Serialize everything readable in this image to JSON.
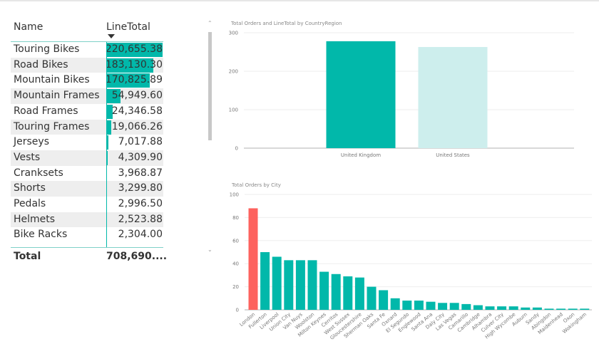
{
  "table": {
    "columns": [
      "Name",
      "LineTotal"
    ],
    "rows": [
      {
        "name": "Touring Bikes",
        "value": "220,655.38",
        "num": 220655.38
      },
      {
        "name": "Road Bikes",
        "value": "183,130.30",
        "num": 183130.3
      },
      {
        "name": "Mountain Bikes",
        "value": "170,825.89",
        "num": 170825.89
      },
      {
        "name": "Mountain Frames",
        "value": "54,949.60",
        "num": 54949.6
      },
      {
        "name": "Road Frames",
        "value": "24,346.58",
        "num": 24346.58
      },
      {
        "name": "Touring Frames",
        "value": "19,066.26",
        "num": 19066.26
      },
      {
        "name": "Jerseys",
        "value": "7,017.88",
        "num": 7017.88
      },
      {
        "name": "Vests",
        "value": "4,309.90",
        "num": 4309.9
      },
      {
        "name": "Cranksets",
        "value": "3,968.87",
        "num": 3968.87
      },
      {
        "name": "Shorts",
        "value": "3,299.80",
        "num": 3299.8
      },
      {
        "name": "Pedals",
        "value": "2,996.50",
        "num": 2996.5
      },
      {
        "name": "Helmets",
        "value": "2,523.88",
        "num": 2523.88
      },
      {
        "name": "Bike Racks",
        "value": "2,304.00",
        "num": 2304.0
      }
    ],
    "total_label": "Total",
    "total_value": "708,690....",
    "bar_color": "#01b8aa"
  },
  "chart_data": [
    {
      "type": "bar",
      "title": "Total Orders and LineTotal by CountryRegion",
      "categories": [
        "United Kingdom",
        "United States"
      ],
      "values": [
        278,
        263
      ],
      "colors": [
        "#01b8aa",
        "#cdeeed"
      ],
      "ylim": [
        0,
        300
      ],
      "yticks": [
        0,
        100,
        200,
        300
      ],
      "grid": true
    },
    {
      "type": "bar",
      "title": "Total Orders by City",
      "categories": [
        "London",
        "Fullerton",
        "Liverpool",
        "Union City",
        "Van Nuys",
        "Woolston",
        "Milton Keynes",
        "Cerritos",
        "West Sussex",
        "Gloucestershire",
        "Sherman Oaks",
        "Santa Fe",
        "Oxnard",
        "El Segundo",
        "Englewood",
        "Santa Ana",
        "Daly City",
        "Las Vegas",
        "Camarillo",
        "Cambridge",
        "Alhambra",
        "Culver City",
        "High Wycombe",
        "Auburn",
        "Sandy",
        "Abingdon",
        "Maidenhead",
        "Oxon",
        "Wokingham"
      ],
      "values": [
        88,
        50,
        46,
        43,
        43,
        43,
        33,
        31,
        29,
        28,
        20,
        17,
        10,
        8,
        8,
        7,
        6,
        6,
        5,
        4,
        3,
        3,
        3,
        2,
        2,
        1,
        1,
        1,
        1
      ],
      "colors": [
        "#fd625e",
        "#01b8aa"
      ],
      "ylim": [
        0,
        100
      ],
      "yticks": [
        0,
        20,
        40,
        60,
        80,
        100
      ],
      "grid": true
    }
  ]
}
